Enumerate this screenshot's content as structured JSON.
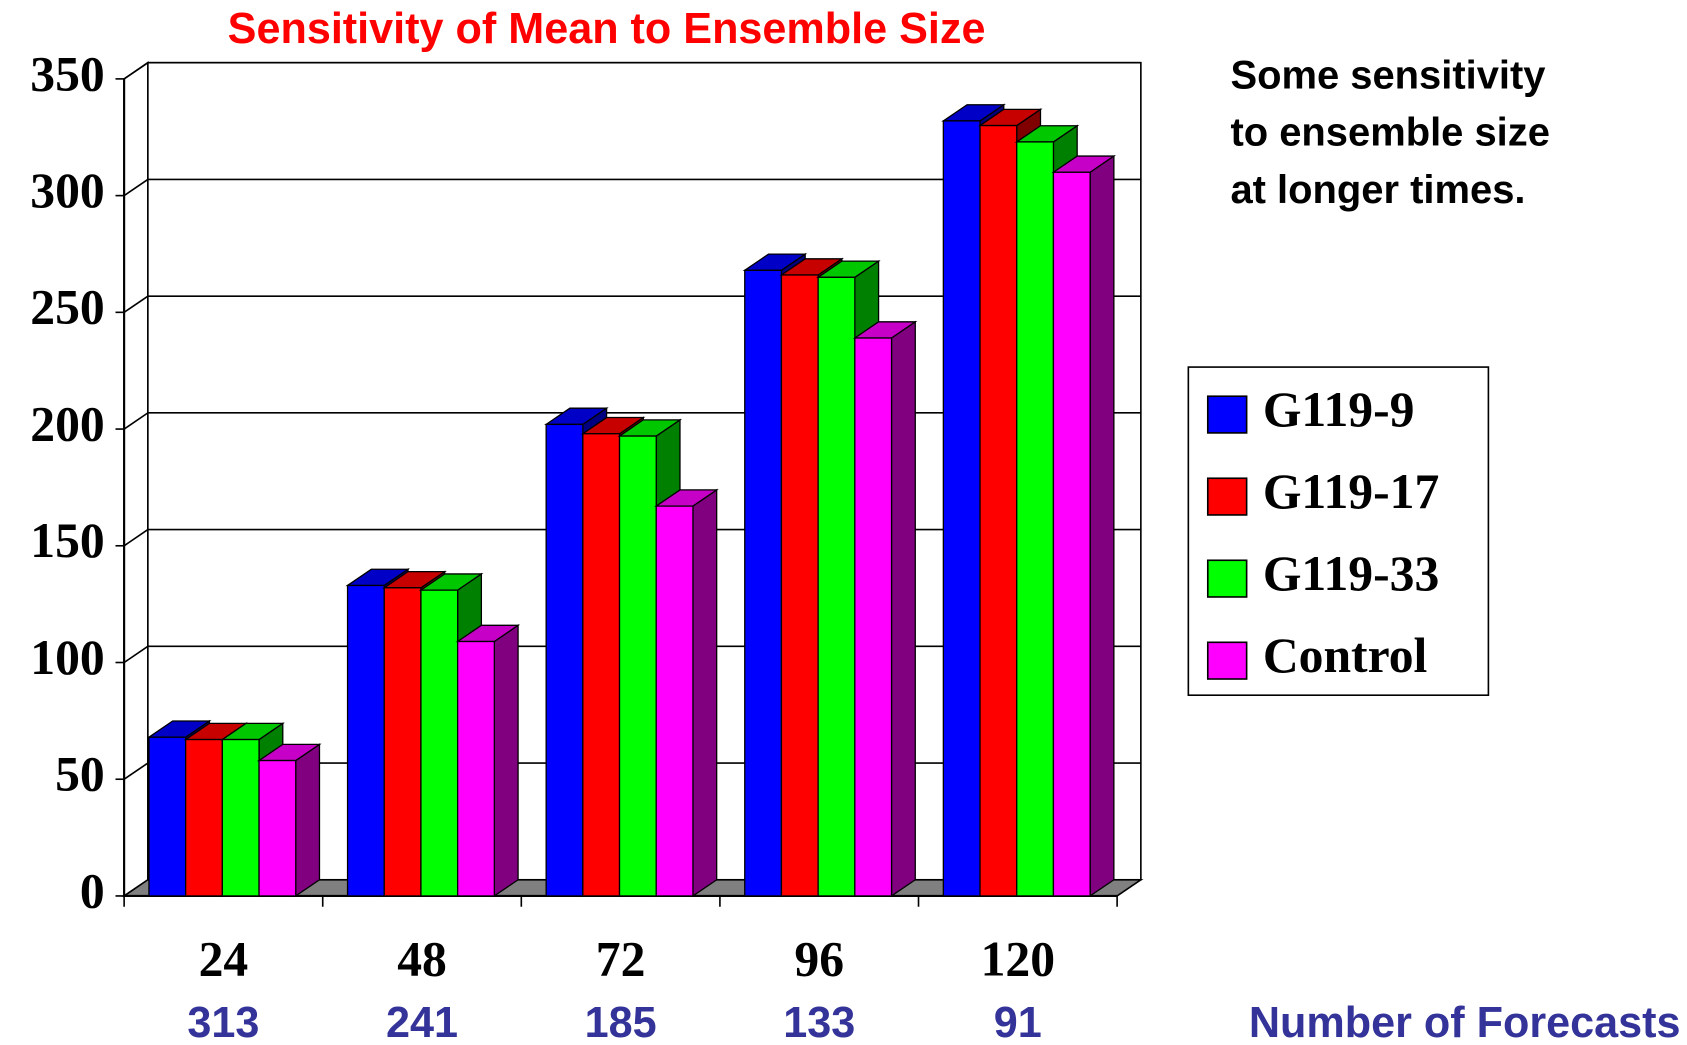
{
  "chart_data": {
    "type": "bar",
    "title": "Sensitivity of Mean to Ensemble Size",
    "annotation": [
      "Some sensitivity",
      "to ensemble size",
      "at longer times."
    ],
    "categories": [
      "24",
      "48",
      "72",
      "96",
      "120"
    ],
    "forecast_counts": [
      313,
      241,
      185,
      133,
      91
    ],
    "forecast_label": "Number of Forecasts",
    "series": [
      {
        "name": "G119-9",
        "color": "#0000ff",
        "values": [
          68,
          133,
          202,
          268,
          332
        ]
      },
      {
        "name": "G119-17",
        "color": "#ff0000",
        "values": [
          67,
          132,
          198,
          266,
          330
        ]
      },
      {
        "name": "G119-33",
        "color": "#00ff00",
        "values": [
          67,
          131,
          197,
          265,
          323
        ]
      },
      {
        "name": "Control",
        "color": "#ff00ff",
        "values": [
          58,
          109,
          167,
          239,
          310
        ]
      }
    ],
    "ylim": [
      0,
      350
    ],
    "yticks": [
      0,
      50,
      100,
      150,
      200,
      250,
      300,
      350
    ],
    "grid": true,
    "legend": "right"
  }
}
